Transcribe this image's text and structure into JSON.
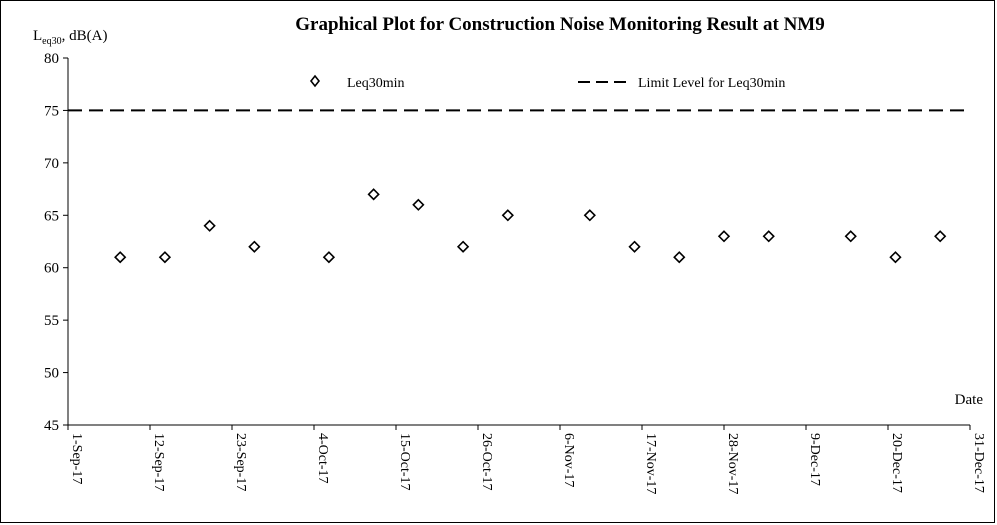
{
  "chart_data": {
    "type": "scatter",
    "title": "Graphical Plot for Construction Noise Monitoring Result at NM9",
    "ylabel": {
      "main": "L",
      "sub": "eq30",
      "suffix": ", dB(A)"
    },
    "xlabel": "Date",
    "ylim": [
      45,
      80
    ],
    "yticks": [
      45,
      50,
      55,
      60,
      65,
      70,
      75,
      80
    ],
    "xlim": [
      "2017-09-01",
      "2017-12-31"
    ],
    "xticks": [
      {
        "date": "2017-09-01",
        "label": "1-Sep-17"
      },
      {
        "date": "2017-09-12",
        "label": "12-Sep-17"
      },
      {
        "date": "2017-09-23",
        "label": "23-Sep-17"
      },
      {
        "date": "2017-10-04",
        "label": "4-Oct-17"
      },
      {
        "date": "2017-10-15",
        "label": "15-Oct-17"
      },
      {
        "date": "2017-10-26",
        "label": "26-Oct-17"
      },
      {
        "date": "2017-11-06",
        "label": "6-Nov-17"
      },
      {
        "date": "2017-11-17",
        "label": "17-Nov-17"
      },
      {
        "date": "2017-11-28",
        "label": "28-Nov-17"
      },
      {
        "date": "2017-12-09",
        "label": "9-Dec-17"
      },
      {
        "date": "2017-12-20",
        "label": "20-Dec-17"
      },
      {
        "date": "2017-12-31",
        "label": "31-Dec-17"
      }
    ],
    "grid": false,
    "legend": {
      "position": "top"
    },
    "series": [
      {
        "name": "Leq30min",
        "marker": "diamond-open",
        "color": "#000000",
        "points": [
          {
            "x": "2017-09-08",
            "y": 61
          },
          {
            "x": "2017-09-14",
            "y": 61
          },
          {
            "x": "2017-09-20",
            "y": 64
          },
          {
            "x": "2017-09-26",
            "y": 62
          },
          {
            "x": "2017-10-06",
            "y": 61
          },
          {
            "x": "2017-10-12",
            "y": 67
          },
          {
            "x": "2017-10-18",
            "y": 66
          },
          {
            "x": "2017-10-24",
            "y": 62
          },
          {
            "x": "2017-10-30",
            "y": 65
          },
          {
            "x": "2017-11-10",
            "y": 65
          },
          {
            "x": "2017-11-16",
            "y": 62
          },
          {
            "x": "2017-11-22",
            "y": 61
          },
          {
            "x": "2017-11-28",
            "y": 63
          },
          {
            "x": "2017-12-04",
            "y": 63
          },
          {
            "x": "2017-12-15",
            "y": 63
          },
          {
            "x": "2017-12-21",
            "y": 61
          },
          {
            "x": "2017-12-27",
            "y": 63
          }
        ]
      },
      {
        "name": "Limit Level for Leq30min",
        "type": "line",
        "style": "dashed",
        "color": "#000000",
        "y": 75
      }
    ]
  }
}
